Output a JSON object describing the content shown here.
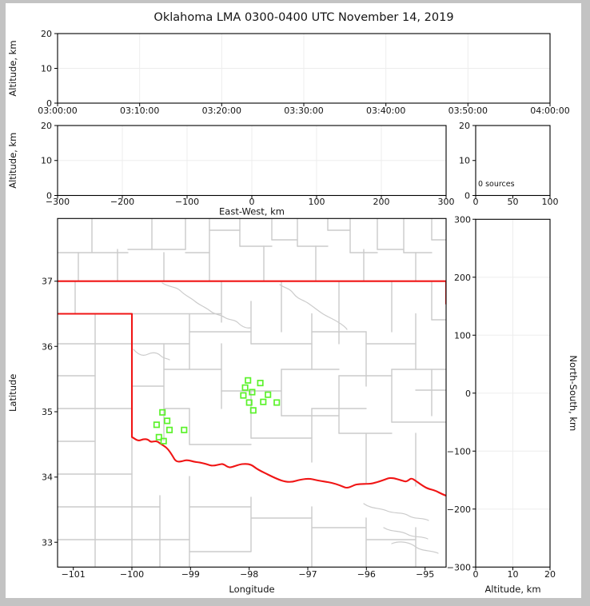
{
  "title": "Oklahoma LMA 0300-0400 UTC November 14, 2019",
  "colors": {
    "figure_background": "#ffffff",
    "window_frame": "#c3c3c3",
    "station_marker": "#5BF22B",
    "state_border": "#F01515",
    "county_line": "#cbcbcb",
    "gridline": "#ededed"
  },
  "panels": {
    "time_height": {
      "ylabel": "Altitude, km",
      "yticks": [
        "20",
        "10",
        "0"
      ],
      "xticks": [
        "03:00:00",
        "03:10:00",
        "03:20:00",
        "03:30:00",
        "03:40:00",
        "03:50:00",
        "04:00:00"
      ]
    },
    "east_west": {
      "ylabel": "Altitude, km",
      "xlabel": "East-West, km",
      "yticks": [
        "20",
        "10",
        "0"
      ],
      "xticks": [
        "−300",
        "−200",
        "−100",
        "0",
        "100",
        "200",
        "300"
      ]
    },
    "stats": {
      "note": "0 sources",
      "yticks": [
        "20",
        "10",
        "0"
      ],
      "xticks": [
        "0",
        "50",
        "100"
      ]
    },
    "map": {
      "ylabel": "Latitude",
      "xlabel": "Longitude",
      "yticks": [
        "37",
        "36",
        "35",
        "34",
        "33"
      ],
      "xticks": [
        "−101",
        "−100",
        "−99",
        "−98",
        "−97",
        "−96",
        "−95"
      ]
    },
    "north_south": {
      "ylabel": "North-South, km",
      "xlabel": "Altitude, km",
      "yticks": [
        "300",
        "200",
        "100",
        "0",
        "−100",
        "−200",
        "−300"
      ],
      "xticks": [
        "0",
        "10",
        "20"
      ]
    }
  },
  "chart_data": [
    {
      "id": "time_height",
      "type": "scatter",
      "ylabel": "Altitude, km",
      "x_range": [
        "03:00:00",
        "04:00:00"
      ],
      "x_tick_interval": "10 min",
      "ylim": [
        0,
        20
      ],
      "points": [],
      "grid": "faint",
      "note": "panel empty - no VHF sources in hour"
    },
    {
      "id": "east_west",
      "type": "scatter",
      "xlabel": "East-West, km",
      "ylabel": "Altitude, km",
      "xlim": [
        -300,
        300
      ],
      "ylim": [
        0,
        20
      ],
      "points": [],
      "grid": "faint"
    },
    {
      "id": "stats",
      "type": "text",
      "text": "0 sources",
      "xlim": [
        0,
        100
      ],
      "ylim": [
        0,
        20
      ],
      "points": []
    },
    {
      "id": "map",
      "type": "scatter",
      "xlabel": "Longitude",
      "ylabel": "Latitude",
      "xlim": [
        -101.27,
        -94.64
      ],
      "ylim": [
        32.63,
        37.97
      ],
      "grid": "off",
      "overlays": [
        "county-boundaries",
        "oklahoma-state-border-red",
        "red-river-border"
      ],
      "series": [
        {
          "name": "lma-stations",
          "marker": "open-square",
          "color": "#5BF22B",
          "points": [
            [
              -98.02,
              35.49
            ],
            [
              -97.81,
              35.45
            ],
            [
              -98.07,
              35.38
            ],
            [
              -97.95,
              35.31
            ],
            [
              -98.1,
              35.26
            ],
            [
              -97.68,
              35.27
            ],
            [
              -98.0,
              35.15
            ],
            [
              -97.76,
              35.16
            ],
            [
              -97.53,
              35.15
            ],
            [
              -97.93,
              35.03
            ],
            [
              -99.48,
              35.0
            ],
            [
              -99.4,
              34.87
            ],
            [
              -99.58,
              34.81
            ],
            [
              -99.36,
              34.73
            ],
            [
              -99.11,
              34.73
            ],
            [
              -99.54,
              34.62
            ],
            [
              -99.46,
              34.56
            ]
          ]
        }
      ]
    },
    {
      "id": "north_south",
      "type": "scatter",
      "xlabel": "Altitude, km",
      "ylabel": "North-South, km",
      "xlim": [
        0,
        20
      ],
      "ylim": [
        -300,
        300
      ],
      "points": [],
      "grid": "faint"
    }
  ]
}
